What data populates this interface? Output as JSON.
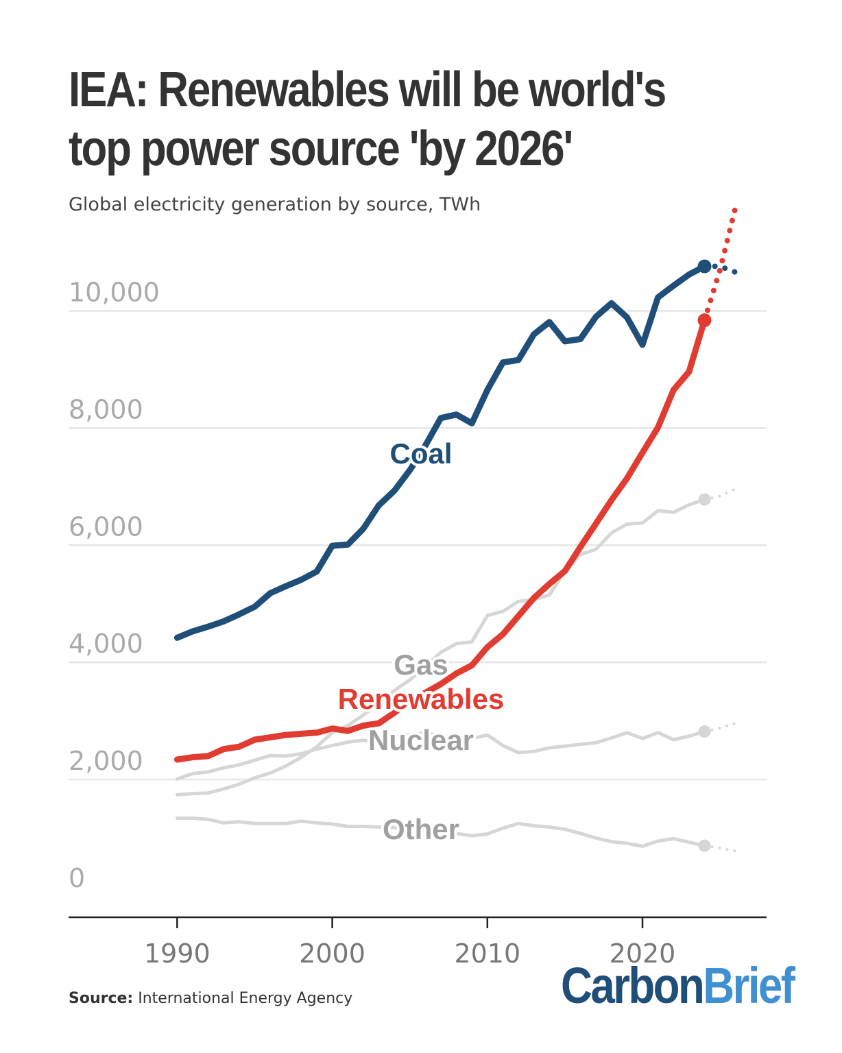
{
  "title": "IEA: Renewables will be world's top power source 'by 2026'",
  "subtitle": "Global electricity generation by source, TWh",
  "source_label": "Source:",
  "source_text": "International Energy Agency",
  "logo": {
    "part1": "Carbon",
    "part2": "Brief"
  },
  "colors": {
    "coal": "#1f4e79",
    "renewables": "#e03c31",
    "gray": "#d6d6d6",
    "label_gray": "#a0a0a0",
    "grid": "#e6e6e6",
    "axis": "#222222",
    "tick": "#aaaaaa"
  },
  "chart_data": {
    "type": "line",
    "title": "",
    "xlabel": "",
    "ylabel": "",
    "xlim": [
      1983,
      2028
    ],
    "ylim": [
      0,
      11000
    ],
    "x_ticks": [
      1990,
      2000,
      2010,
      2020
    ],
    "y_ticks": [
      0,
      2000,
      4000,
      6000,
      8000,
      10000
    ],
    "y_tick_labels": [
      "0",
      "2,000",
      "4,000",
      "6,000",
      "8,000",
      "10,000"
    ],
    "x_tick_labels": [
      "1990",
      "2000",
      "2010",
      "2020"
    ],
    "grid": true,
    "series": [
      {
        "name": "Coal",
        "x": [
          1990,
          1991,
          1992,
          1993,
          1994,
          1995,
          1996,
          1997,
          1998,
          1999,
          2000,
          2001,
          2002,
          2003,
          2004,
          2005,
          2006,
          2007,
          2008,
          2009,
          2010,
          2011,
          2012,
          2013,
          2014,
          2015,
          2016,
          2017,
          2018,
          2019,
          2020,
          2021,
          2022,
          2023,
          2024
        ],
        "values": [
          4420,
          4530,
          4610,
          4700,
          4820,
          4950,
          5180,
          5300,
          5410,
          5550,
          5990,
          6010,
          6280,
          6680,
          6930,
          7280,
          7700,
          8170,
          8230,
          8080,
          8650,
          9120,
          9160,
          9600,
          9810,
          9480,
          9520,
          9900,
          10130,
          9890,
          9420,
          10230,
          10430,
          10620,
          10760
        ],
        "forecast_x": [
          2024,
          2025,
          2026
        ],
        "forecast_values": [
          10760,
          10760,
          10660
        ]
      },
      {
        "name": "Renewables",
        "x": [
          1990,
          1991,
          1992,
          1993,
          1994,
          1995,
          1996,
          1997,
          1998,
          1999,
          2000,
          2001,
          2002,
          2003,
          2004,
          2005,
          2006,
          2007,
          2008,
          2009,
          2010,
          2011,
          2012,
          2013,
          2014,
          2015,
          2016,
          2017,
          2018,
          2019,
          2020,
          2021,
          2022,
          2023,
          2024
        ],
        "values": [
          2340,
          2380,
          2400,
          2520,
          2560,
          2680,
          2720,
          2760,
          2780,
          2800,
          2870,
          2830,
          2920,
          2960,
          3140,
          3350,
          3480,
          3630,
          3810,
          3950,
          4260,
          4480,
          4790,
          5100,
          5340,
          5560,
          5970,
          6370,
          6770,
          7140,
          7580,
          8010,
          8650,
          8960,
          9840
        ],
        "forecast_x": [
          2024,
          2025,
          2026
        ],
        "forecast_values": [
          9840,
          10700,
          11770
        ]
      },
      {
        "name": "Gas",
        "x": [
          1990,
          1991,
          1992,
          1993,
          1994,
          1995,
          1996,
          1997,
          1998,
          1999,
          2000,
          2001,
          2002,
          2003,
          2004,
          2005,
          2006,
          2007,
          2008,
          2009,
          2010,
          2011,
          2012,
          2013,
          2014,
          2015,
          2016,
          2017,
          2018,
          2019,
          2020,
          2021,
          2022,
          2023,
          2024
        ],
        "values": [
          1740,
          1760,
          1770,
          1840,
          1920,
          2030,
          2110,
          2230,
          2380,
          2560,
          2800,
          2920,
          3100,
          3290,
          3520,
          3700,
          3930,
          4170,
          4320,
          4350,
          4800,
          4870,
          5040,
          5070,
          5150,
          5560,
          5840,
          5930,
          6210,
          6360,
          6380,
          6590,
          6560,
          6690,
          6780
        ],
        "forecast_x": [
          2024,
          2025,
          2026
        ],
        "forecast_values": [
          6780,
          6840,
          6960
        ]
      },
      {
        "name": "Nuclear",
        "x": [
          1990,
          1991,
          1992,
          1993,
          1994,
          1995,
          1996,
          1997,
          1998,
          1999,
          2000,
          2001,
          2002,
          2003,
          2004,
          2005,
          2006,
          2007,
          2008,
          2009,
          2010,
          2011,
          2012,
          2013,
          2014,
          2015,
          2016,
          2017,
          2018,
          2019,
          2020,
          2021,
          2022,
          2023,
          2024
        ],
        "values": [
          2010,
          2100,
          2130,
          2200,
          2250,
          2330,
          2410,
          2400,
          2440,
          2520,
          2580,
          2640,
          2670,
          2640,
          2740,
          2770,
          2800,
          2740,
          2730,
          2700,
          2760,
          2580,
          2460,
          2480,
          2540,
          2570,
          2600,
          2630,
          2710,
          2800,
          2700,
          2800,
          2680,
          2740,
          2820
        ],
        "forecast_x": [
          2024,
          2025,
          2026
        ],
        "forecast_values": [
          2820,
          2880,
          2960
        ]
      },
      {
        "name": "Other",
        "x": [
          1990,
          1991,
          1992,
          1993,
          1994,
          1995,
          1996,
          1997,
          1998,
          1999,
          2000,
          2001,
          2002,
          2003,
          2004,
          2005,
          2006,
          2007,
          2008,
          2009,
          2010,
          2011,
          2012,
          2013,
          2014,
          2015,
          2016,
          2017,
          2018,
          2019,
          2020,
          2021,
          2022,
          2023,
          2024
        ],
        "values": [
          1340,
          1340,
          1320,
          1260,
          1280,
          1250,
          1250,
          1250,
          1290,
          1260,
          1240,
          1200,
          1200,
          1190,
          1180,
          1160,
          1130,
          1120,
          1080,
          1040,
          1070,
          1170,
          1250,
          1210,
          1190,
          1150,
          1080,
          1000,
          940,
          910,
          860,
          950,
          990,
          930,
          870
        ],
        "forecast_x": [
          2024,
          2025,
          2026
        ],
        "forecast_values": [
          870,
          830,
          780
        ]
      }
    ],
    "annotations": [
      {
        "text": "Coal",
        "series": "Coal"
      },
      {
        "text": "Gas",
        "series": "Gas"
      },
      {
        "text": "Renewables",
        "series": "Renewables"
      },
      {
        "text": "Nuclear",
        "series": "Nuclear"
      },
      {
        "text": "Other",
        "series": "Other"
      }
    ]
  }
}
